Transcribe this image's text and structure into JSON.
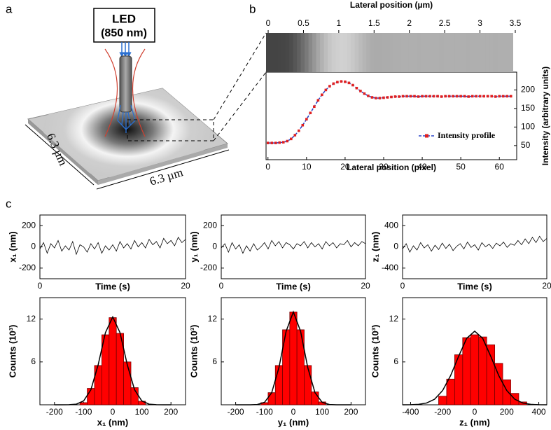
{
  "panel_labels": [
    "a",
    "b",
    "c"
  ],
  "diagram": {
    "source_label": "LED",
    "wavelength": "(850 nm)",
    "side_1": "6.3 µm",
    "side_2": "6.3 µm"
  },
  "chart_data": [
    {
      "type": "line",
      "xlabel": "Lateral position (pixel)",
      "x2label": "Lateral position (µm)",
      "ylabel": "Intensity (arbitrary units)",
      "x": [
        0,
        1,
        2,
        3,
        4,
        5,
        6,
        7,
        8,
        9,
        10,
        11,
        12,
        13,
        14,
        15,
        16,
        17,
        18,
        19,
        20,
        21,
        22,
        23,
        24,
        25,
        26,
        27,
        28,
        29,
        30,
        31,
        32,
        33,
        34,
        35,
        36,
        37,
        38,
        39,
        40,
        41,
        42,
        43,
        44,
        45,
        46,
        47,
        48,
        49,
        50,
        51,
        52,
        53,
        54,
        55,
        56,
        57,
        58,
        59,
        60,
        61,
        62,
        63
      ],
      "series": [
        {
          "name": "Intensity profile",
          "color": "#2a44c8",
          "marker_color": "#e02020",
          "values": [
            57,
            57,
            57,
            58,
            59,
            62,
            68,
            78,
            90,
            105,
            121,
            138,
            155,
            172,
            187,
            200,
            210,
            217,
            221,
            223,
            222,
            219,
            213,
            205,
            197,
            190,
            184,
            180,
            178,
            178,
            179,
            180,
            181,
            182,
            182,
            183,
            183,
            183,
            183,
            182,
            183,
            183,
            183,
            183,
            183,
            182,
            183,
            183,
            183,
            183,
            183,
            183,
            182,
            183,
            183,
            183,
            183,
            183,
            183,
            182,
            183,
            183,
            183,
            183
          ]
        }
      ],
      "xlim": [
        -0.5,
        64.5
      ],
      "xticks": [
        0,
        10,
        20,
        30,
        40,
        50,
        60
      ],
      "x2lim": [
        -0.03,
        3.52
      ],
      "x2ticks": [
        0,
        0.5,
        1,
        1.5,
        2,
        2.5,
        3,
        3.5
      ],
      "ylim": [
        12,
        248
      ],
      "yticks": [
        50,
        100,
        150,
        200
      ],
      "y_axis_side": "right",
      "legend": "lower right"
    },
    {
      "type": "line",
      "xlabel": "Time (s)",
      "ylabel": "x₁ (nm)",
      "x": [
        0,
        0.5,
        1,
        1.5,
        2,
        2.5,
        3,
        3.5,
        4,
        4.5,
        5,
        5.5,
        6,
        6.5,
        7,
        7.5,
        8,
        8.5,
        9,
        9.5,
        10,
        10.5,
        11,
        11.5,
        12,
        12.5,
        13,
        13.5,
        14,
        14.5,
        15,
        15.5,
        16,
        16.5,
        17,
        17.5,
        18,
        18.5,
        19,
        19.5,
        20
      ],
      "series": [
        {
          "color": "#000000",
          "values": [
            -20,
            40,
            -60,
            30,
            -10,
            60,
            -40,
            10,
            -30,
            50,
            -70,
            20,
            0,
            -50,
            30,
            -20,
            40,
            -60,
            10,
            -30,
            20,
            -40,
            50,
            -10,
            30,
            -20,
            60,
            0,
            40,
            -10,
            70,
            20,
            50,
            -10,
            80,
            30,
            60,
            10,
            90,
            40,
            70
          ]
        }
      ],
      "xlim": [
        0,
        20
      ],
      "xticks": [
        0,
        20
      ],
      "ylim": [
        -300,
        300
      ],
      "yticks": [
        -200,
        0,
        200
      ]
    },
    {
      "type": "line",
      "xlabel": "Time (s)",
      "ylabel": "y₁ (nm)",
      "x": [
        0,
        0.5,
        1,
        1.5,
        2,
        2.5,
        3,
        3.5,
        4,
        4.5,
        5,
        5.5,
        6,
        6.5,
        7,
        7.5,
        8,
        8.5,
        9,
        9.5,
        10,
        10.5,
        11,
        11.5,
        12,
        12.5,
        13,
        13.5,
        14,
        14.5,
        15,
        15.5,
        16,
        16.5,
        17,
        17.5,
        18,
        18.5,
        19,
        19.5,
        20
      ],
      "series": [
        {
          "color": "#000000",
          "values": [
            -10,
            30,
            -50,
            40,
            -20,
            20,
            -60,
            10,
            -40,
            30,
            -30,
            0,
            40,
            -20,
            60,
            10,
            50,
            -10,
            40,
            20,
            -20,
            30,
            10,
            50,
            -10,
            40,
            0,
            30,
            -20,
            50,
            10,
            40,
            -10,
            30,
            20,
            60,
            0,
            40,
            10,
            50,
            30
          ]
        }
      ],
      "xlim": [
        0,
        20
      ],
      "xticks": [
        0,
        20
      ],
      "ylim": [
        -300,
        300
      ],
      "yticks": [
        -200,
        0,
        200
      ]
    },
    {
      "type": "line",
      "xlabel": "Time (s)",
      "ylabel": "z₁ (nm)",
      "x": [
        0,
        0.5,
        1,
        1.5,
        2,
        2.5,
        3,
        3.5,
        4,
        4.5,
        5,
        5.5,
        6,
        6.5,
        7,
        7.5,
        8,
        8.5,
        9,
        9.5,
        10,
        10.5,
        11,
        11.5,
        12,
        12.5,
        13,
        13.5,
        14,
        14.5,
        15,
        15.5,
        16,
        16.5,
        17,
        17.5,
        18,
        18.5,
        19,
        19.5,
        20
      ],
      "series": [
        {
          "color": "#000000",
          "values": [
            -40,
            60,
            -100,
            20,
            -60,
            80,
            -20,
            40,
            -80,
            30,
            -50,
            70,
            -30,
            50,
            -70,
            10,
            60,
            -40,
            90,
            -10,
            40,
            -60,
            80,
            0,
            50,
            -30,
            70,
            20,
            90,
            -10,
            60,
            30,
            120,
            40,
            150,
            60,
            180,
            80,
            200,
            100,
            160
          ]
        }
      ],
      "xlim": [
        0,
        20
      ],
      "xticks": [
        0,
        20
      ],
      "ylim": [
        -600,
        600
      ],
      "yticks": [
        -400,
        0,
        400
      ]
    },
    {
      "type": "histogram",
      "xlabel": "x₁ (nm)",
      "ylabel": "Counts (10³)",
      "color": "#ff0000",
      "bins": [
        -112.5,
        -87.5,
        -62.5,
        -37.5,
        -12.5,
        12.5,
        37.5,
        62.5,
        87.5,
        112.5
      ],
      "values": [
        0.3,
        2.3,
        5.5,
        9.8,
        12.2,
        10,
        6,
        2.4,
        0.5
      ],
      "fit": {
        "color": "#000000",
        "x": [
          -200,
          -175,
          -150,
          -125,
          -100,
          -75,
          -50,
          -25,
          0,
          25,
          50,
          75,
          100,
          125,
          150,
          175,
          200
        ],
        "values": [
          0,
          0,
          0.01,
          0.09,
          0.54,
          2.1,
          5.6,
          10.1,
          12.3,
          10.1,
          5.6,
          2.1,
          0.54,
          0.09,
          0.01,
          0,
          0
        ]
      },
      "xlim": [
        -250,
        250
      ],
      "xticks": [
        -200,
        -100,
        0,
        100,
        200
      ],
      "ylim": [
        0,
        15
      ],
      "yticks": [
        6,
        12
      ]
    },
    {
      "type": "histogram",
      "xlabel": "y₁ (nm)",
      "ylabel": "Counts (10³)",
      "color": "#ff0000",
      "bins": [
        -112.5,
        -87.5,
        -62.5,
        -37.5,
        -12.5,
        12.5,
        37.5,
        62.5,
        87.5,
        112.5
      ],
      "values": [
        0.3,
        1.7,
        5.5,
        10.5,
        13,
        10.5,
        5.5,
        1.8,
        0.4
      ],
      "fit": {
        "color": "#000000",
        "x": [
          -200,
          -175,
          -150,
          -125,
          -100,
          -75,
          -50,
          -25,
          0,
          25,
          50,
          75,
          100,
          125,
          150,
          175,
          200
        ],
        "values": [
          0,
          0,
          0,
          0.04,
          0.34,
          1.7,
          5.2,
          10.3,
          13,
          10.3,
          5.2,
          1.7,
          0.34,
          0.04,
          0,
          0,
          0
        ]
      },
      "xlim": [
        -250,
        250
      ],
      "xticks": [
        -200,
        -100,
        0,
        100,
        200
      ],
      "ylim": [
        0,
        15
      ],
      "yticks": [
        6,
        12
      ]
    },
    {
      "type": "histogram",
      "xlabel": "z₁ (nm)",
      "ylabel": "Counts (10³)",
      "color": "#ff0000",
      "bins": [
        -225,
        -175,
        -125,
        -75,
        -25,
        25,
        75,
        125,
        175,
        225,
        275,
        325
      ],
      "values": [
        1.2,
        3.6,
        7,
        9.4,
        9.8,
        9.5,
        8.4,
        5.8,
        3.5,
        1.6,
        0.4
      ],
      "fit": {
        "color": "#000000",
        "x": [
          -450,
          -400,
          -350,
          -300,
          -250,
          -200,
          -150,
          -100,
          -50,
          0,
          50,
          100,
          150,
          200,
          250,
          300,
          350,
          400,
          450
        ],
        "values": [
          0,
          0.01,
          0.06,
          0.25,
          0.78,
          2.0,
          4.1,
          6.8,
          9.3,
          10.3,
          9.3,
          6.8,
          4.1,
          2.0,
          0.78,
          0.25,
          0.06,
          0.01,
          0
        ]
      },
      "xlim": [
        -450,
        450
      ],
      "xticks": [
        -400,
        -200,
        0,
        200,
        400
      ],
      "ylim": [
        0,
        15
      ],
      "yticks": [
        6,
        12
      ]
    }
  ]
}
